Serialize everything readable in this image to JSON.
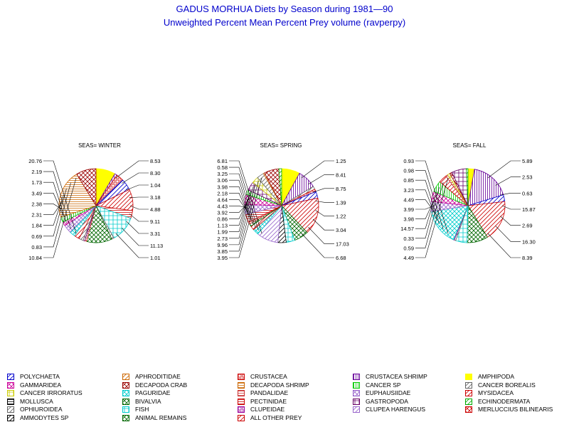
{
  "title": "GADUS MORHUA Diets by Season during 1981—90",
  "subtitle": "Unweighted Percent Mean Percent Prey  volume (ravperpy)",
  "chart_data": {
    "type": "pie",
    "categories": [
      "POLYCHAETA",
      "APHRODITIDAE",
      "CRUSTACEA",
      "CRUSTACEA SHRIMP",
      "AMPHIPODA",
      "GAMMARIDEA",
      "DECAPODA CRAB",
      "DECAPODA SHRIMP",
      "CANCER SP",
      "CANCER BOREALIS",
      "CANCER IRRORATUS",
      "PAGURIDAE",
      "PANDALIDAE",
      "EUPHAUSIIDAE",
      "MYSIDACEA",
      "MOLLUSCA",
      "BIVALVIA",
      "PECTINIDAE",
      "GASTROPODA",
      "ECHINODERMATA",
      "OPHIUROIDEA",
      "FISH",
      "CLUPEIDAE",
      "CLUPEA HARENGUS",
      "MERLUCCIUS BILINEARIS",
      "AMMODYTES SP",
      "ANIMAL REMAINS",
      "ALL OTHER PREY"
    ],
    "colors": [
      "#0000cc",
      "#cc6600",
      "#cc0000",
      "#660099",
      "#ffff00",
      "#cc0099",
      "#990000",
      "#cc6600",
      "#00cc00",
      "#666666",
      "#cccc00",
      "#00cccc",
      "#cc3333",
      "#9966cc",
      "#cc0000",
      "#000000",
      "#006600",
      "#cc0000",
      "#660066",
      "#00aa00",
      "#666666",
      "#00cccc",
      "#990099",
      "#9966cc",
      "#cc0000",
      "#000000",
      "#006600",
      "#cc0000"
    ],
    "panels": [
      {
        "title": "SEAS= WINTER",
        "slices": [
          {
            "category": "AMPHIPODA",
            "value": 8.3
          },
          {
            "category": "CRUSTACEA SHRIMP",
            "value": 1.04
          },
          {
            "category": "CRUSTACEA",
            "value": 3.18
          },
          {
            "category": "POLYCHAETA",
            "value": 4.88
          },
          {
            "category": "ALL OTHER PREY",
            "value": 9.11
          },
          {
            "category": "PECTINIDAE",
            "value": 3.31
          },
          {
            "category": "FISH",
            "value": 11.13
          },
          {
            "category": "OPHIUROIDEA",
            "value": 1.01
          },
          {
            "category": "BIVALVIA",
            "value": 10.84
          },
          {
            "category": "PANDALIDAE",
            "value": 0.83
          },
          {
            "category": "GASTROPODA",
            "value": 0.69
          },
          {
            "category": "CANCER BOREALIS",
            "value": 1.84
          },
          {
            "category": "MYSIDACEA",
            "value": 2.31
          },
          {
            "category": "PAGURIDAE",
            "value": 2.38
          },
          {
            "category": "EUPHAUSIIDAE",
            "value": 3.49
          },
          {
            "category": "GAMMARIDEA",
            "value": 1.73
          },
          {
            "category": "CANCER SP",
            "value": 2.19
          },
          {
            "category": "DECAPODA SHRIMP",
            "value": 20.76
          },
          {
            "category": "DECAPODA CRAB",
            "value": 8.53
          }
        ],
        "labels_left": [
          "20.76",
          "2.19",
          "1.73",
          "3.49",
          "2.38",
          "2.31",
          "1.84",
          "0.69",
          "0.83",
          "10.84"
        ],
        "labels_right": [
          "8.53",
          "8.30",
          "1.04",
          "3.18",
          "4.88",
          "9.11",
          "3.31",
          "11.13",
          "1.01"
        ]
      },
      {
        "title": "SEAS= SPRING",
        "slices": [
          {
            "category": "AMPHIPODA",
            "value": 8.41
          },
          {
            "category": "CRUSTACEA SHRIMP",
            "value": 8.75
          },
          {
            "category": "CANCER BOREALIS",
            "value": 1.39
          },
          {
            "category": "CRUSTACEA",
            "value": 1.22
          },
          {
            "category": "POLYCHAETA",
            "value": 3.04
          },
          {
            "category": "ALL OTHER PREY",
            "value": 17.03
          },
          {
            "category": "ANIMAL REMAINS",
            "value": 6.68
          },
          {
            "category": "FISH",
            "value": 3.95
          },
          {
            "category": "AMMODYTES SP",
            "value": 3.85
          },
          {
            "category": "CLUPEA HARENGUS",
            "value": 9.96
          },
          {
            "category": "PAGURIDAE",
            "value": 2.73
          },
          {
            "category": "MYSIDACEA",
            "value": 1.99
          },
          {
            "category": "BIVALVIA",
            "value": 1.13
          },
          {
            "category": "PANDALIDAE",
            "value": 0.86
          },
          {
            "category": "PECTINIDAE",
            "value": 3.92
          },
          {
            "category": "EUPHAUSIIDAE",
            "value": 4.43
          },
          {
            "category": "GAMMARIDEA",
            "value": 4.64
          },
          {
            "category": "CANCER SP",
            "value": 2.18
          },
          {
            "category": "GASTROPODA",
            "value": 3.98
          },
          {
            "category": "CANCER IRRORATUS",
            "value": 3.06
          },
          {
            "category": "OPHIUROIDEA",
            "value": 3.25
          },
          {
            "category": "APHRODITIDAE",
            "value": 0.58
          },
          {
            "category": "DECAPODA CRAB",
            "value": 6.81
          },
          {
            "category": "ECHINODERMATA",
            "value": 1.25
          }
        ],
        "labels_left": [
          "6.81",
          "0.58",
          "3.25",
          "3.06",
          "3.98",
          "2.18",
          "4.64",
          "4.43",
          "3.92",
          "0.86",
          "1.13",
          "1.99",
          "2.73",
          "9.96",
          "3.85",
          "3.95"
        ],
        "labels_right": [
          "1.25",
          "8.41",
          "8.75",
          "1.39",
          "1.22",
          "3.04",
          "17.03",
          "6.68"
        ]
      },
      {
        "title": "SEAS= FALL",
        "slices": [
          {
            "category": "AMPHIPODA",
            "value": 2.53
          },
          {
            "category": "CRUSTACEA SHRIMP",
            "value": 15.87
          },
          {
            "category": "POLYCHAETA",
            "value": 2.69
          },
          {
            "category": "ALL OTHER PREY",
            "value": 16.3
          },
          {
            "category": "ANIMAL REMAINS",
            "value": 8.39
          },
          {
            "category": "FISH",
            "value": 4.49
          },
          {
            "category": "OPHIUROIDEA",
            "value": 0.59
          },
          {
            "category": "CLUPEIDAE",
            "value": 0.33
          },
          {
            "category": "PAGURIDAE",
            "value": 14.57
          },
          {
            "category": "EUPHAUSIIDAE",
            "value": 3.98
          },
          {
            "category": "GAMMARIDEA",
            "value": 3.99
          },
          {
            "category": "CANCER SP",
            "value": 4.49
          },
          {
            "category": "MYSIDACEA",
            "value": 3.23
          },
          {
            "category": "PANDALIDAE",
            "value": 0.85
          },
          {
            "category": "CANCER IRRORATUS",
            "value": 0.98
          },
          {
            "category": "DECAPODA CRAB",
            "value": 0.93
          },
          {
            "category": "GASTROPODA",
            "value": 5.89
          },
          {
            "category": "ECHINODERMATA",
            "value": 0.63
          }
        ],
        "labels_left": [
          "0.93",
          "0.98",
          "0.85",
          "3.23",
          "4.49",
          "3.99",
          "3.98",
          "14.57",
          "0.33",
          "0.59",
          "4.49"
        ],
        "labels_right": [
          "5.89",
          "2.53",
          "0.63",
          "15.87",
          "2.69",
          "16.30",
          "8.39"
        ]
      }
    ]
  },
  "legend": [
    {
      "label": "POLYCHAETA",
      "color": "#0000cc",
      "pattern": "diag"
    },
    {
      "label": "APHRODITIDAE",
      "color": "#cc6600",
      "pattern": "diag"
    },
    {
      "label": "CRUSTACEA",
      "color": "#cc0000",
      "pattern": "box"
    },
    {
      "label": "CRUSTACEA SHRIMP",
      "color": "#660099",
      "pattern": "vert"
    },
    {
      "label": "AMPHIPODA",
      "color": "#ffff00",
      "pattern": "solid"
    },
    {
      "label": "GAMMARIDEA",
      "color": "#cc0099",
      "pattern": "cross"
    },
    {
      "label": "DECAPODA CRAB",
      "color": "#990000",
      "pattern": "cross"
    },
    {
      "label": "DECAPODA SHRIMP",
      "color": "#cc6600",
      "pattern": "horiz"
    },
    {
      "label": "CANCER SP",
      "color": "#00cc00",
      "pattern": "vert"
    },
    {
      "label": "CANCER BOREALIS",
      "color": "#666666",
      "pattern": "diag"
    },
    {
      "label": "CANCER IRRORATUS",
      "color": "#cccc00",
      "pattern": "hatch"
    },
    {
      "label": "PAGURIDAE",
      "color": "#00cccc",
      "pattern": "cross"
    },
    {
      "label": "PANDALIDAE",
      "color": "#cc3333",
      "pattern": "horiz"
    },
    {
      "label": "EUPHAUSIIDAE",
      "color": "#9966cc",
      "pattern": "cross"
    },
    {
      "label": "MYSIDACEA",
      "color": "#cc0000",
      "pattern": "diag"
    },
    {
      "label": "MOLLUSCA",
      "color": "#000000",
      "pattern": "horiz"
    },
    {
      "label": "BIVALVIA",
      "color": "#006600",
      "pattern": "cross"
    },
    {
      "label": "PECTINIDAE",
      "color": "#cc0000",
      "pattern": "horiz"
    },
    {
      "label": "GASTROPODA",
      "color": "#660066",
      "pattern": "hatch"
    },
    {
      "label": "ECHINODERMATA",
      "color": "#00aa00",
      "pattern": "diag"
    },
    {
      "label": "OPHIUROIDEA",
      "color": "#666666",
      "pattern": "diag"
    },
    {
      "label": "FISH",
      "color": "#00cccc",
      "pattern": "hatch"
    },
    {
      "label": "CLUPEIDAE",
      "color": "#990099",
      "pattern": "box"
    },
    {
      "label": "CLUPEA HARENGUS",
      "color": "#9966cc",
      "pattern": "diag"
    },
    {
      "label": "MERLUCCIUS BILINEARIS",
      "color": "#cc0000",
      "pattern": "cross"
    },
    {
      "label": "AMMODYTES SP",
      "color": "#000000",
      "pattern": "diag"
    },
    {
      "label": "ANIMAL REMAINS",
      "color": "#006600",
      "pattern": "cross"
    },
    {
      "label": "ALL OTHER PREY",
      "color": "#cc0000",
      "pattern": "diag"
    }
  ]
}
